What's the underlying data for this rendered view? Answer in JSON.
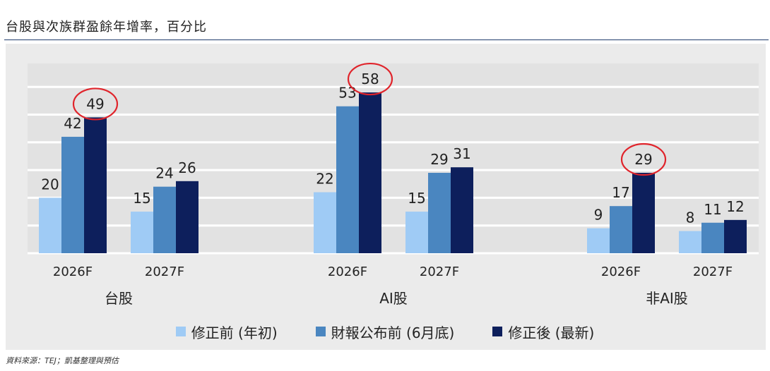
{
  "title": "台股與次族群盈餘年增率，百分比",
  "source": "資料來源：TEJ；凱基整理與預估",
  "chart_data": {
    "type": "bar",
    "ylim": [
      0,
      65
    ],
    "grid": true,
    "legend_position": "bottom",
    "groups": [
      {
        "name": "台股",
        "years": [
          {
            "label": "2026F",
            "values": [
              20,
              42,
              49
            ]
          },
          {
            "label": "2027F",
            "values": [
              15,
              24,
              26
            ]
          }
        ]
      },
      {
        "name": "AI股",
        "years": [
          {
            "label": "2026F",
            "values": [
              22,
              53,
              58
            ]
          },
          {
            "label": "2027F",
            "values": [
              15,
              29,
              31
            ]
          }
        ]
      },
      {
        "name": "非AI股",
        "years": [
          {
            "label": "2026F",
            "values": [
              9,
              17,
              29
            ]
          },
          {
            "label": "2027F",
            "values": [
              8,
              11,
              12
            ]
          }
        ]
      }
    ],
    "series": [
      {
        "name": "修正前 (年初)",
        "color": "#9fcbf5"
      },
      {
        "name": "財報公布前 (6月底)",
        "color": "#4a86c0"
      },
      {
        "name": "修正後 (最新)",
        "color": "#0d1f5c"
      }
    ],
    "highlighted": [
      {
        "group": 0,
        "year": 0,
        "series": 2
      },
      {
        "group": 1,
        "year": 0,
        "series": 2
      },
      {
        "group": 2,
        "year": 0,
        "series": 2
      }
    ],
    "highlight_color": "#e0242b"
  }
}
